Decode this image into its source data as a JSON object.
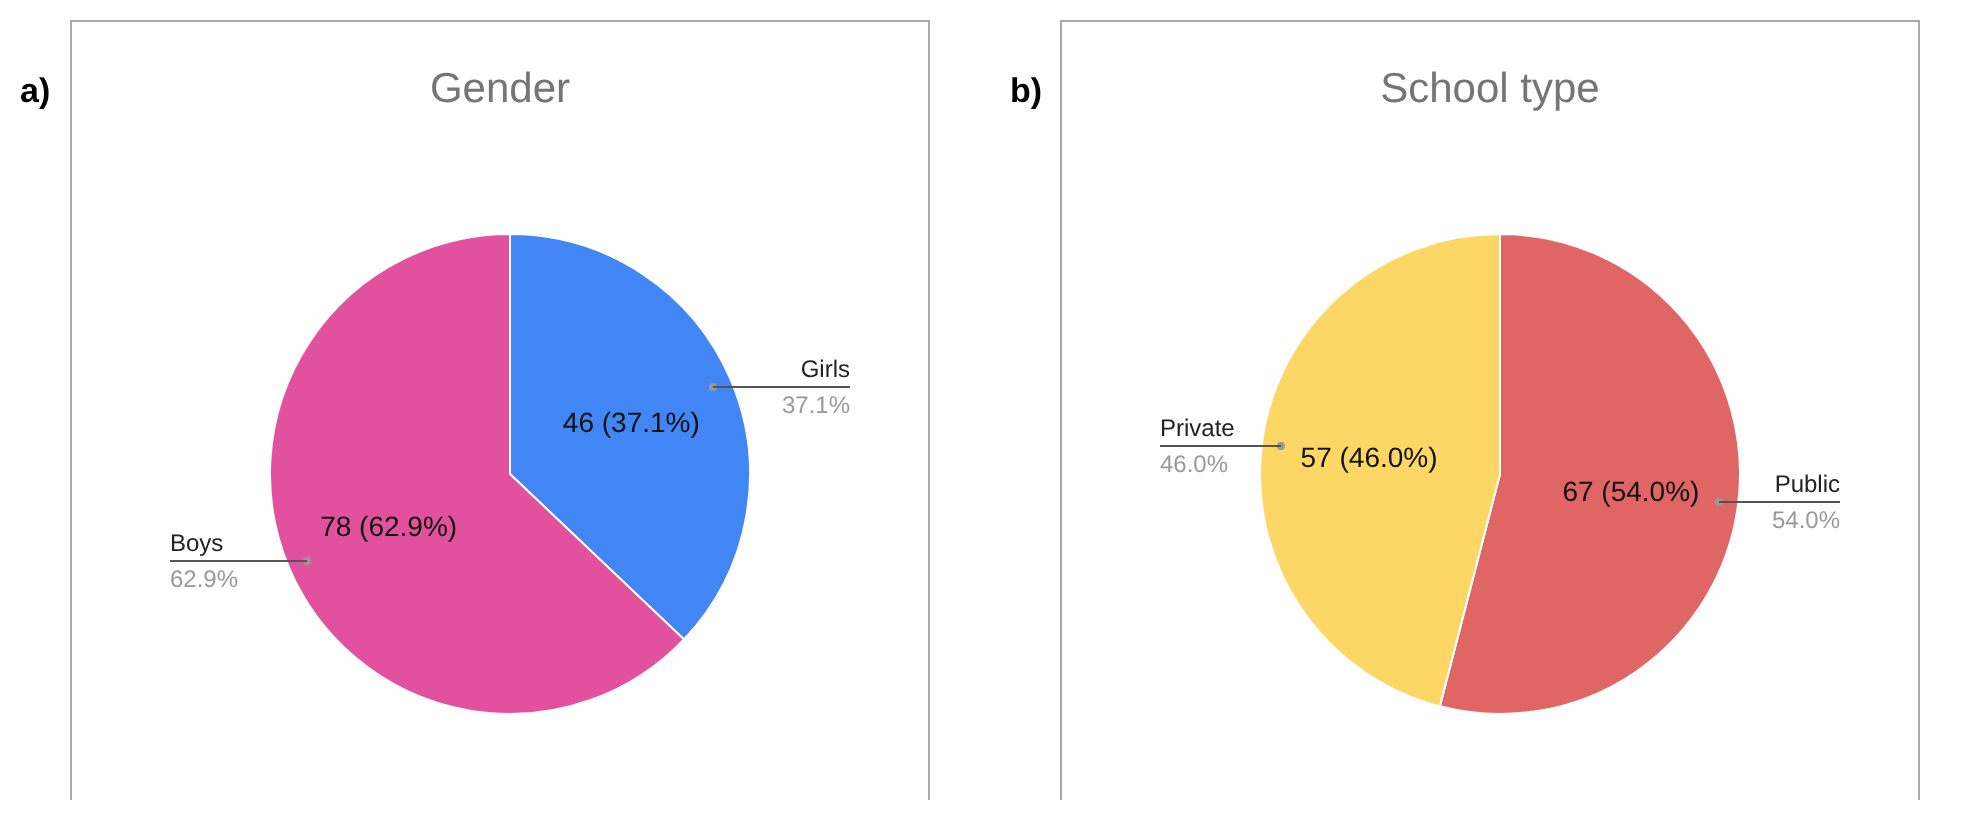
{
  "chart_data": [
    {
      "type": "pie",
      "title": "Gender",
      "annotations": [
        "a)",
        {
          "text": "37.1%",
          "x": "Girls"
        },
        {
          "text": "62.9%",
          "x": "Boys"
        }
      ],
      "categories": [
        "Girls",
        "Boys"
      ],
      "values": [
        46,
        78
      ],
      "colors": [
        "#4285f4",
        "#e2519d"
      ],
      "value_labels": [
        "46 (37.1%)",
        "78 (62.9%)"
      ],
      "legend": false
    },
    {
      "type": "pie",
      "title": "School type",
      "annotations": [
        "b)",
        {
          "text": "54.0%",
          "x": "Public"
        },
        {
          "text": "46.0%",
          "x": "Private"
        }
      ],
      "categories": [
        "Public",
        "Private"
      ],
      "values": [
        67,
        57
      ],
      "colors": [
        "#e06666",
        "#fdd766"
      ],
      "value_labels": [
        "67 (54.0%)",
        "57 (46.0%)"
      ],
      "legend": false
    }
  ]
}
